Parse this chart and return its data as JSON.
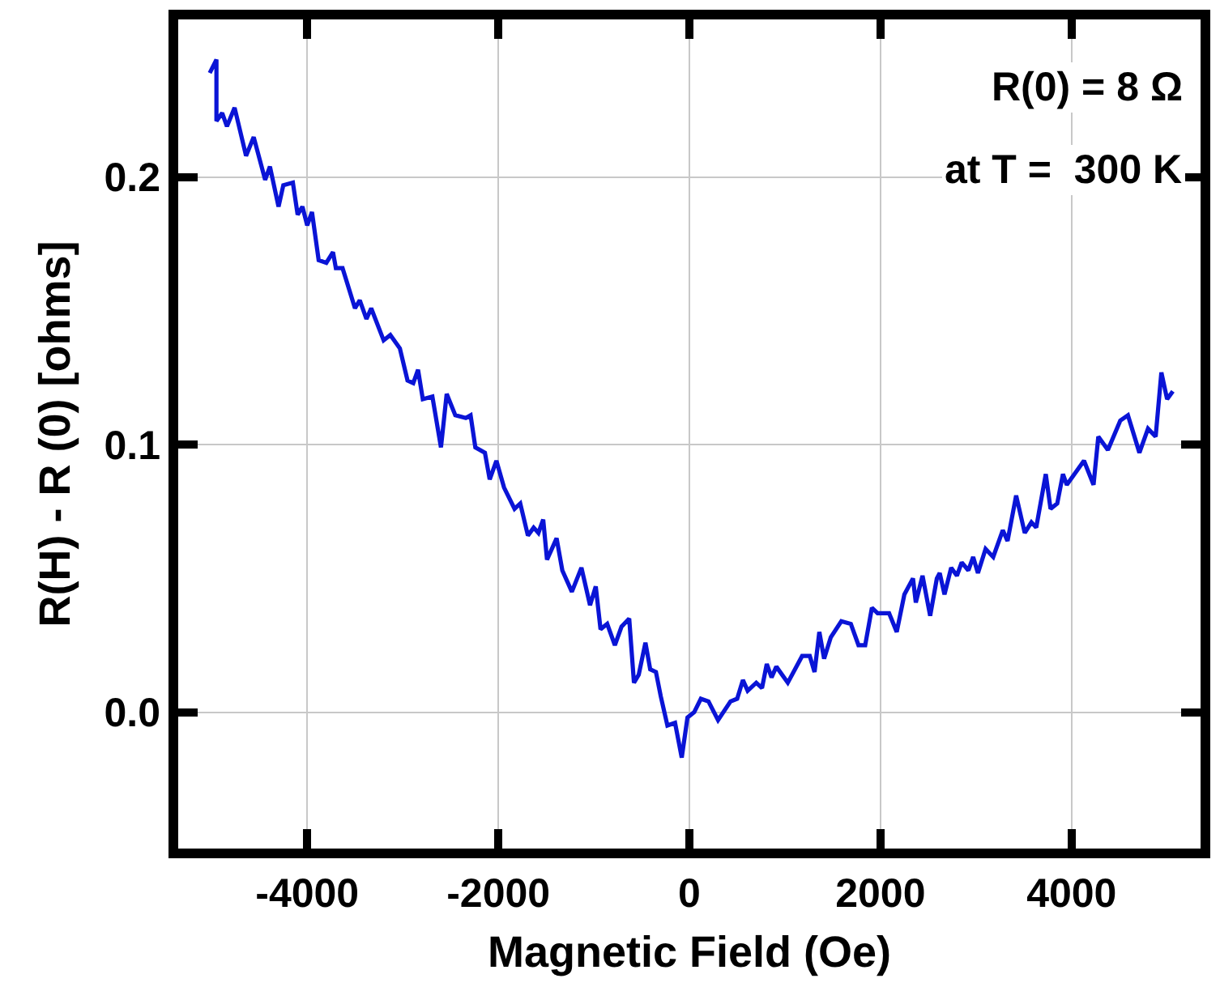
{
  "chart_data": {
    "type": "line",
    "xlabel": "Magnetic Field (Oe)",
    "ylabel": "R(H) - R (0) [ohms]",
    "annotations": [
      "R(0) = 8 Ω",
      "at T =  300 K"
    ],
    "xlim": [
      -5350,
      5350
    ],
    "ylim": [
      -0.051,
      0.259
    ],
    "xticks": [
      -4000,
      -2000,
      0,
      2000,
      4000
    ],
    "yticks": [
      {
        "value": 0,
        "label": "0.0"
      },
      {
        "value": 0.1,
        "label": "0.1"
      },
      {
        "value": 0.2,
        "label": "0.2"
      }
    ],
    "grid": true,
    "marker": "none",
    "line_style": "solid",
    "series": [
      {
        "color": "#0a14d6",
        "x": [
          -5020,
          -4950,
          -4950,
          -4890,
          -4840,
          -4760,
          -4640,
          -4560,
          -4440,
          -4390,
          -4300,
          -4250,
          -4150,
          -4100,
          -4050,
          -4000,
          -3950,
          -3880,
          -3800,
          -3730,
          -3700,
          -3630,
          -3500,
          -3450,
          -3380,
          -3330,
          -3200,
          -3130,
          -3030,
          -2950,
          -2890,
          -2840,
          -2790,
          -2690,
          -2600,
          -2540,
          -2450,
          -2340,
          -2290,
          -2240,
          -2140,
          -2090,
          -2020,
          -1940,
          -1830,
          -1770,
          -1690,
          -1630,
          -1580,
          -1530,
          -1490,
          -1390,
          -1330,
          -1230,
          -1130,
          -1040,
          -980,
          -930,
          -860,
          -780,
          -710,
          -630,
          -580,
          -530,
          -460,
          -410,
          -350,
          -300,
          -230,
          -150,
          -80,
          -20,
          50,
          120,
          200,
          300,
          430,
          500,
          560,
          610,
          700,
          760,
          810,
          860,
          910,
          1030,
          1180,
          1260,
          1310,
          1360,
          1410,
          1480,
          1590,
          1690,
          1770,
          1840,
          1910,
          1970,
          2020,
          2090,
          2170,
          2250,
          2340,
          2370,
          2440,
          2520,
          2590,
          2620,
          2670,
          2740,
          2800,
          2850,
          2920,
          2970,
          3020,
          3100,
          3180,
          3280,
          3330,
          3420,
          3510,
          3580,
          3630,
          3730,
          3780,
          3850,
          3910,
          3950,
          4050,
          4130,
          4230,
          4280,
          4380,
          4510,
          4590,
          4710,
          4800,
          4880,
          4940,
          5000,
          5060
        ],
        "values": [
          0.239,
          0.244,
          0.221,
          0.224,
          0.219,
          0.226,
          0.208,
          0.215,
          0.199,
          0.204,
          0.189,
          0.197,
          0.198,
          0.186,
          0.189,
          0.182,
          0.187,
          0.169,
          0.168,
          0.172,
          0.166,
          0.166,
          0.151,
          0.154,
          0.147,
          0.151,
          0.139,
          0.141,
          0.136,
          0.124,
          0.123,
          0.128,
          0.117,
          0.118,
          0.099,
          0.119,
          0.111,
          0.11,
          0.111,
          0.099,
          0.097,
          0.087,
          0.094,
          0.084,
          0.076,
          0.078,
          0.066,
          0.069,
          0.067,
          0.072,
          0.057,
          0.065,
          0.053,
          0.045,
          0.054,
          0.04,
          0.047,
          0.031,
          0.033,
          0.025,
          0.032,
          0.035,
          0.011,
          0.014,
          0.026,
          0.016,
          0.015,
          0.006,
          -0.005,
          -0.004,
          -0.017,
          -0.002,
          0.0,
          0.005,
          0.004,
          -0.003,
          0.004,
          0.005,
          0.012,
          0.008,
          0.011,
          0.009,
          0.018,
          0.013,
          0.017,
          0.011,
          0.021,
          0.021,
          0.015,
          0.03,
          0.02,
          0.028,
          0.034,
          0.033,
          0.025,
          0.025,
          0.039,
          0.037,
          0.037,
          0.037,
          0.03,
          0.044,
          0.05,
          0.041,
          0.051,
          0.036,
          0.05,
          0.052,
          0.044,
          0.054,
          0.051,
          0.056,
          0.053,
          0.058,
          0.052,
          0.061,
          0.058,
          0.068,
          0.064,
          0.081,
          0.067,
          0.071,
          0.069,
          0.089,
          0.076,
          0.078,
          0.089,
          0.085,
          0.09,
          0.094,
          0.085,
          0.103,
          0.098,
          0.109,
          0.111,
          0.097,
          0.106,
          0.103,
          0.127,
          0.117,
          0.12
        ]
      }
    ]
  }
}
